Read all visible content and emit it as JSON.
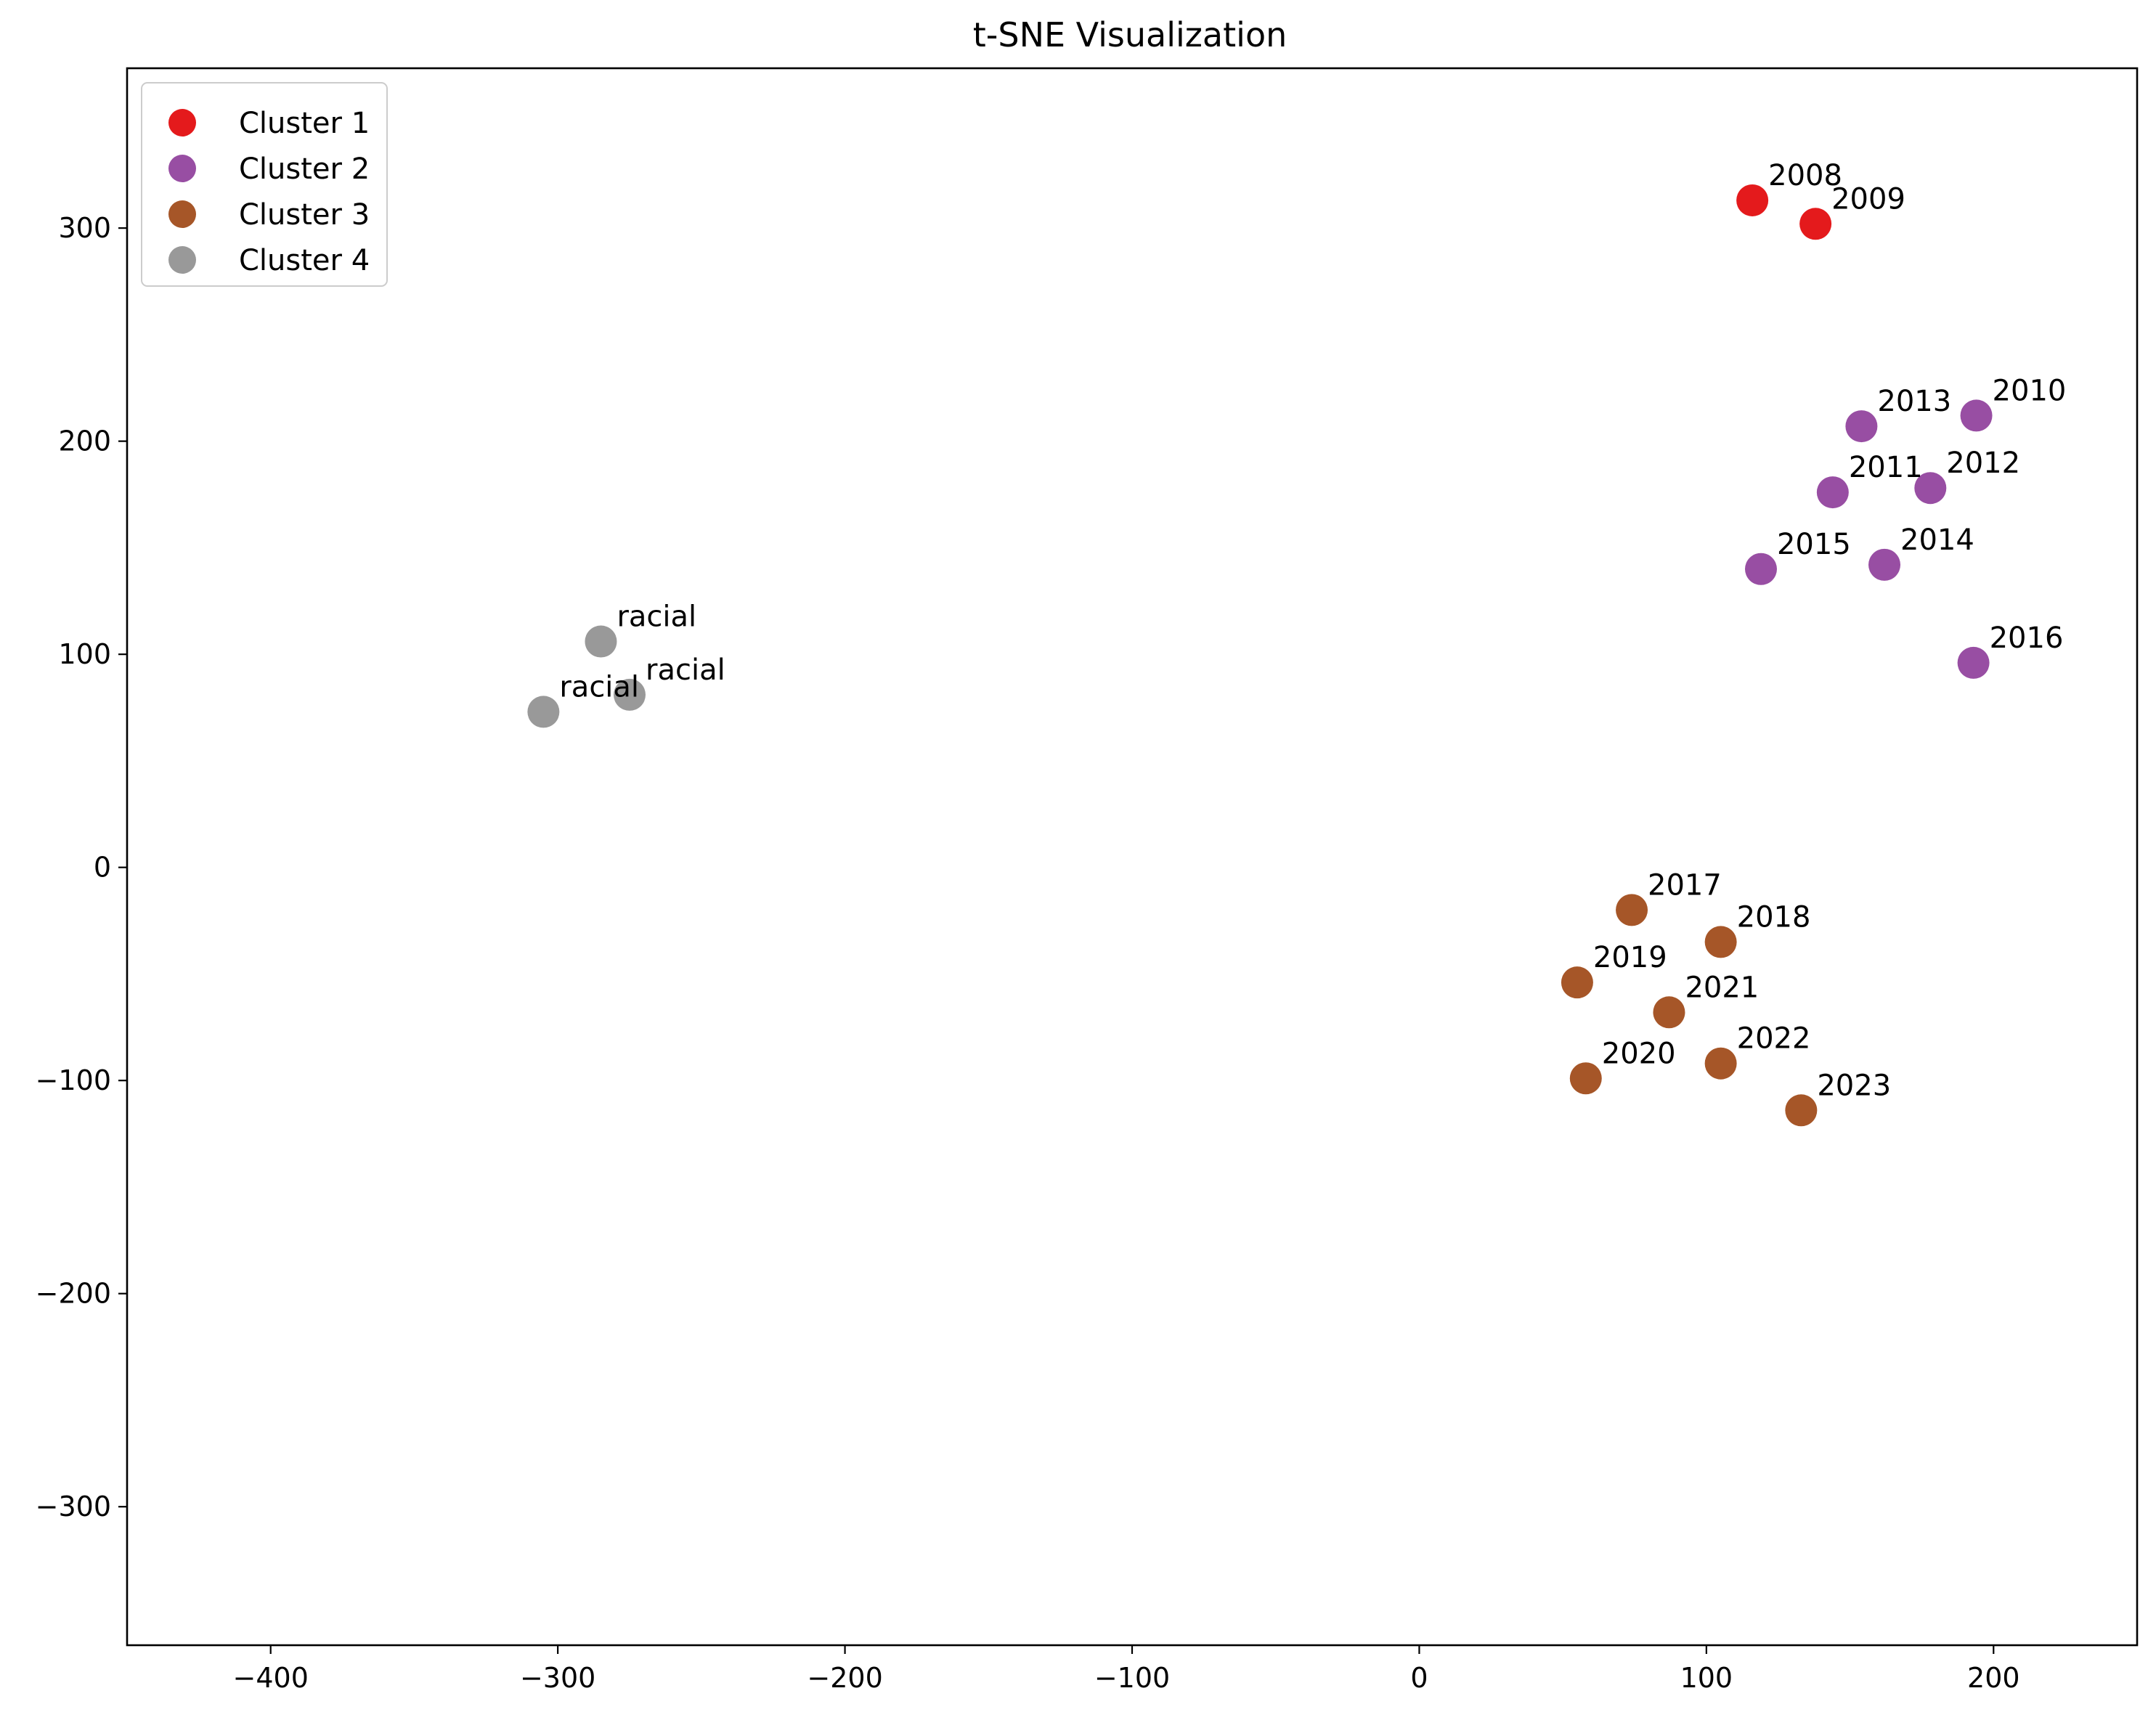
{
  "chart_data": {
    "type": "scatter",
    "title": "t-SNE Visualization",
    "xlabel": "",
    "ylabel": "",
    "xlim": [
      -450,
      250
    ],
    "ylim": [
      -365,
      375
    ],
    "grid": false,
    "legend_position": "upper-left",
    "x_ticks": [
      -400,
      -300,
      -200,
      -100,
      0,
      100,
      200
    ],
    "y_ticks": [
      -300,
      -200,
      -100,
      0,
      100,
      200,
      300
    ],
    "series": [
      {
        "name": "Cluster 1",
        "color": "#e41a1c",
        "points": [
          {
            "x": 116,
            "y": 313,
            "label": "2008"
          },
          {
            "x": 138,
            "y": 302,
            "label": "2009"
          }
        ]
      },
      {
        "name": "Cluster 2",
        "color": "#984ea3",
        "points": [
          {
            "x": 194,
            "y": 212,
            "label": "2010"
          },
          {
            "x": 144,
            "y": 176,
            "label": "2011"
          },
          {
            "x": 178,
            "y": 178,
            "label": "2012"
          },
          {
            "x": 154,
            "y": 207,
            "label": "2013"
          },
          {
            "x": 162,
            "y": 142,
            "label": "2014"
          },
          {
            "x": 119,
            "y": 140,
            "label": "2015"
          },
          {
            "x": 193,
            "y": 96,
            "label": "2016"
          }
        ]
      },
      {
        "name": "Cluster 3",
        "color": "#a65628",
        "points": [
          {
            "x": 74,
            "y": -20,
            "label": "2017"
          },
          {
            "x": 105,
            "y": -35,
            "label": "2018"
          },
          {
            "x": 55,
            "y": -54,
            "label": "2019"
          },
          {
            "x": 58,
            "y": -99,
            "label": "2020"
          },
          {
            "x": 87,
            "y": -68,
            "label": "2021"
          },
          {
            "x": 105,
            "y": -92,
            "label": "2022"
          },
          {
            "x": 133,
            "y": -114,
            "label": "2023"
          }
        ]
      },
      {
        "name": "Cluster 4",
        "color": "#999999",
        "points": [
          {
            "x": -285,
            "y": 106,
            "label": "racial"
          },
          {
            "x": -275,
            "y": 81,
            "label": "racial"
          },
          {
            "x": -305,
            "y": 73,
            "label": "racial"
          }
        ]
      }
    ]
  }
}
